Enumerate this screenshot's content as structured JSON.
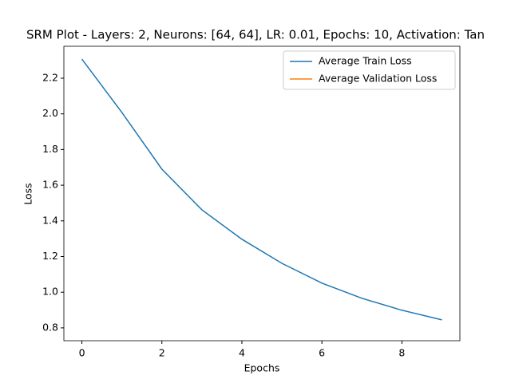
{
  "chart_data": {
    "type": "line",
    "title": "SRM Plot - Layers: 2, Neurons: [64, 64], LR: 0.01, Epochs: 10, Activation: Tan",
    "x_label": "Epochs",
    "y_label": "Loss",
    "x": [
      0,
      1,
      2,
      3,
      4,
      5,
      6,
      7,
      8,
      9
    ],
    "series": [
      {
        "name": "Average Train Loss",
        "color": "#1f77b4",
        "values": [
          2.307,
          2.008,
          1.69,
          1.462,
          1.297,
          1.162,
          1.051,
          0.966,
          0.899,
          0.845
        ]
      },
      {
        "name": "Average Validation Loss",
        "color": "#ff7f0e",
        "values": [
          null,
          null,
          null,
          null,
          null,
          null,
          null,
          null,
          null,
          null
        ]
      }
    ],
    "xlim": [
      -0.45,
      9.45
    ],
    "xticks": [
      0,
      2,
      4,
      6,
      8
    ],
    "ylim": [
      0.728,
      2.379
    ],
    "yticks": [
      {
        "value": 0.8,
        "label": "0.8"
      },
      {
        "value": 1.0,
        "label": "1.0"
      },
      {
        "value": 1.2,
        "label": "1.2"
      },
      {
        "value": 1.4,
        "label": "1.4"
      },
      {
        "value": 1.6,
        "label": "1.6"
      },
      {
        "value": 1.8,
        "label": "1.8"
      },
      {
        "value": 2.0,
        "label": "2.0"
      },
      {
        "value": 2.2,
        "label": "2.2"
      }
    ],
    "legend": "upper right",
    "grid": false
  }
}
